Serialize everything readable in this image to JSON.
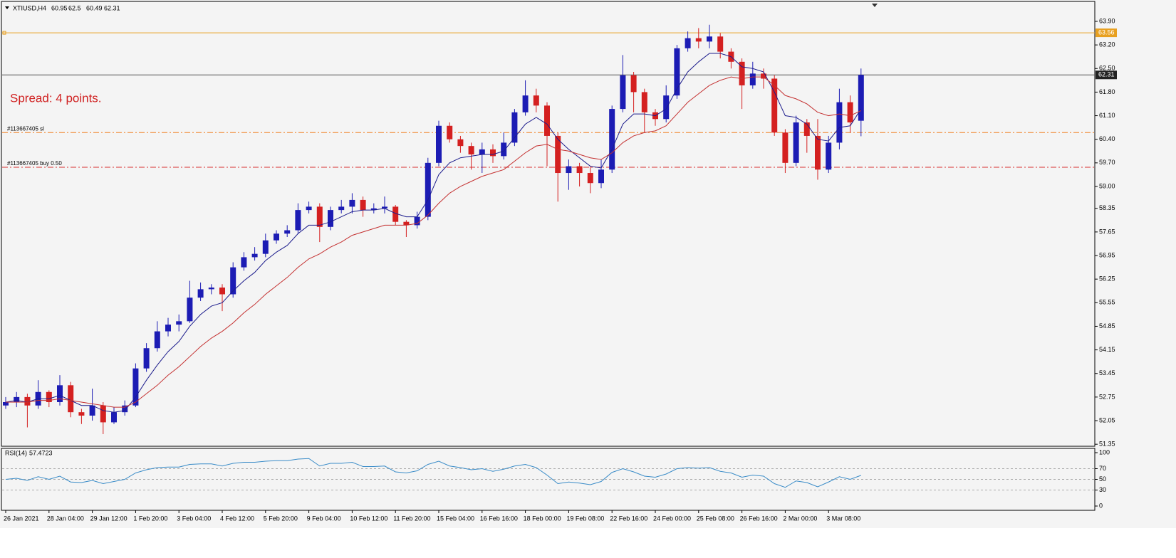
{
  "header": {
    "symbol": "XTIUSD,H4"
  },
  "annotations": {
    "spread": "Spread: 4 points."
  },
  "chart_data": [
    {
      "type": "candlestick",
      "categories": [
        "26 Jan 2021",
        null,
        null,
        null,
        "28 Jan 04:00",
        null,
        null,
        null,
        "29 Jan 12:00",
        null,
        null,
        null,
        "1 Feb 20:00",
        null,
        null,
        null,
        "3 Feb 04:00",
        null,
        null,
        null,
        "4 Feb 12:00",
        null,
        null,
        null,
        "5 Feb 20:00",
        null,
        null,
        null,
        "9 Feb 04:00",
        null,
        null,
        null,
        "10 Feb 12:00",
        null,
        null,
        null,
        "11 Feb 20:00",
        null,
        null,
        null,
        "15 Feb 04:00",
        null,
        null,
        null,
        "16 Feb 16:00",
        null,
        null,
        null,
        "18 Feb 00:00",
        null,
        null,
        null,
        "19 Feb 08:00",
        null,
        null,
        null,
        "22 Feb 16:00",
        null,
        null,
        null,
        "24 Feb 00:00",
        null,
        null,
        null,
        "25 Feb 08:00",
        null,
        null,
        null,
        "26 Feb 16:00",
        null,
        null,
        null,
        "2 Mar 00:00",
        null,
        null,
        null,
        "3 Mar 08:00",
        null,
        null,
        null
      ],
      "open": [
        52.5,
        52.6,
        52.75,
        52.5,
        52.9,
        52.6,
        53.1,
        52.3,
        52.2,
        52.5,
        52.0,
        52.3,
        52.5,
        53.6,
        54.2,
        54.7,
        54.9,
        55.0,
        55.7,
        55.95,
        56.0,
        55.8,
        56.6,
        56.9,
        57.0,
        57.4,
        57.6,
        57.7,
        58.3,
        58.4,
        57.8,
        58.3,
        58.4,
        58.6,
        58.3,
        58.35,
        58.4,
        57.95,
        57.85,
        58.1,
        59.7,
        60.8,
        60.4,
        60.2,
        59.95,
        60.1,
        59.9,
        60.3,
        61.2,
        61.7,
        61.4,
        60.5,
        59.4,
        59.6,
        59.4,
        59.1,
        59.5,
        61.3,
        62.3,
        61.8,
        61.2,
        61.0,
        61.7,
        63.1,
        63.4,
        63.3,
        63.45,
        63.0,
        62.7,
        62.0,
        62.35,
        62.2,
        60.6,
        59.7,
        60.9,
        60.5,
        59.5,
        60.3,
        61.5,
        60.95
      ],
      "high": [
        52.75,
        52.9,
        52.85,
        53.25,
        52.95,
        53.4,
        53.2,
        52.4,
        53.0,
        52.6,
        52.45,
        52.65,
        53.75,
        54.35,
        55.0,
        55.1,
        55.2,
        56.2,
        56.15,
        56.1,
        56.1,
        56.75,
        57.05,
        57.2,
        57.6,
        57.7,
        57.85,
        58.5,
        58.55,
        58.5,
        58.4,
        58.6,
        58.8,
        58.7,
        58.5,
        58.7,
        58.45,
        58.0,
        58.25,
        59.85,
        60.95,
        60.9,
        60.5,
        60.3,
        60.3,
        60.25,
        60.6,
        61.3,
        62.15,
        61.9,
        61.5,
        60.6,
        59.8,
        59.7,
        59.6,
        59.8,
        61.4,
        62.9,
        62.4,
        61.9,
        61.3,
        62.0,
        63.2,
        63.6,
        63.7,
        63.8,
        63.55,
        63.1,
        62.8,
        62.7,
        62.5,
        62.3,
        60.7,
        61.1,
        61.0,
        61.0,
        60.5,
        61.9,
        61.7,
        62.5
      ],
      "low": [
        52.4,
        52.45,
        51.85,
        52.4,
        52.45,
        52.5,
        52.15,
        51.95,
        52.05,
        51.65,
        51.95,
        52.2,
        52.45,
        53.5,
        54.1,
        54.55,
        54.7,
        54.95,
        55.6,
        55.8,
        55.3,
        55.7,
        56.5,
        56.8,
        56.9,
        57.3,
        57.5,
        57.6,
        58.2,
        57.35,
        57.7,
        58.2,
        58.2,
        58.1,
        58.2,
        58.2,
        57.85,
        57.5,
        57.75,
        58.0,
        59.6,
        60.3,
        60.0,
        59.5,
        59.4,
        59.7,
        59.8,
        60.2,
        61.1,
        61.2,
        59.6,
        58.55,
        58.9,
        59.0,
        58.8,
        58.95,
        59.4,
        61.2,
        61.2,
        60.6,
        60.8,
        60.9,
        61.6,
        63.0,
        63.1,
        63.1,
        62.8,
        62.5,
        61.3,
        61.9,
        61.9,
        60.5,
        59.4,
        59.6,
        60.0,
        59.2,
        59.4,
        60.1,
        60.6,
        60.49
      ],
      "close": [
        52.6,
        52.75,
        52.5,
        52.9,
        52.6,
        53.1,
        52.3,
        52.2,
        52.5,
        52.0,
        52.3,
        52.5,
        53.6,
        54.2,
        54.7,
        54.9,
        55.0,
        55.7,
        55.95,
        56.0,
        55.8,
        56.6,
        56.9,
        57.0,
        57.4,
        57.6,
        57.7,
        58.3,
        58.4,
        57.8,
        58.3,
        58.4,
        58.6,
        58.3,
        58.35,
        58.4,
        57.95,
        57.85,
        58.1,
        59.7,
        60.8,
        60.4,
        60.2,
        59.95,
        60.1,
        59.9,
        60.3,
        61.2,
        61.7,
        61.4,
        60.5,
        59.4,
        59.6,
        59.4,
        59.1,
        59.5,
        61.3,
        62.3,
        61.8,
        61.2,
        61.0,
        61.7,
        63.1,
        63.4,
        63.3,
        63.45,
        63.0,
        62.7,
        62.0,
        62.35,
        62.2,
        60.6,
        59.7,
        60.9,
        60.5,
        59.5,
        60.3,
        61.5,
        60.9,
        62.31
      ],
      "up_color": "#1c1cb4",
      "down_color": "#d42020",
      "ma": [
        {
          "color": "#1c1c8c",
          "values": [
            52.6,
            52.65,
            52.6,
            52.7,
            52.7,
            52.8,
            52.65,
            52.5,
            52.5,
            52.35,
            52.3,
            52.35,
            52.75,
            53.25,
            53.7,
            54.1,
            54.4,
            54.85,
            55.2,
            55.45,
            55.55,
            55.9,
            56.2,
            56.45,
            56.8,
            57.05,
            57.25,
            57.6,
            57.85,
            57.85,
            57.95,
            58.1,
            58.25,
            58.3,
            58.3,
            58.35,
            58.2,
            58.1,
            58.1,
            58.6,
            59.35,
            59.7,
            59.85,
            59.9,
            59.95,
            59.95,
            60.05,
            60.45,
            60.85,
            61.05,
            60.85,
            60.4,
            60.1,
            59.85,
            59.6,
            59.55,
            60.1,
            60.85,
            61.15,
            61.15,
            61.1,
            61.3,
            61.9,
            62.4,
            62.7,
            62.95,
            62.95,
            62.85,
            62.55,
            62.5,
            62.4,
            61.8,
            61.1,
            61.05,
            60.85,
            60.4,
            60.35,
            60.75,
            60.8,
            61.3
          ]
        },
        {
          "color": "#c43030",
          "values": [
            52.6,
            52.6,
            52.6,
            52.65,
            52.65,
            52.7,
            52.65,
            52.6,
            52.55,
            52.5,
            52.45,
            52.45,
            52.6,
            52.85,
            53.1,
            53.4,
            53.65,
            53.95,
            54.25,
            54.5,
            54.7,
            54.95,
            55.25,
            55.5,
            55.8,
            56.05,
            56.3,
            56.6,
            56.85,
            57.0,
            57.2,
            57.35,
            57.55,
            57.65,
            57.75,
            57.85,
            57.85,
            57.85,
            57.9,
            58.15,
            58.5,
            58.8,
            59.0,
            59.15,
            59.3,
            59.4,
            59.5,
            59.75,
            60.0,
            60.2,
            60.25,
            60.1,
            60.05,
            59.95,
            59.85,
            59.8,
            60.0,
            60.3,
            60.5,
            60.6,
            60.65,
            60.8,
            61.15,
            61.5,
            61.75,
            62.0,
            62.15,
            62.25,
            62.2,
            62.25,
            62.25,
            62.0,
            61.7,
            61.6,
            61.45,
            61.2,
            61.1,
            61.15,
            61.1,
            61.25
          ]
        }
      ],
      "ylim": [
        51.29,
        64.47
      ],
      "yticks": [
        {
          "value": 63.9,
          "label": "63.90"
        },
        {
          "value": 63.2,
          "label": "63.20"
        },
        {
          "value": 62.5,
          "label": "62.50"
        },
        {
          "value": 61.8,
          "label": "61.80"
        },
        {
          "value": 61.1,
          "label": "61.10"
        },
        {
          "value": 60.4,
          "label": "60.40"
        },
        {
          "value": 59.7,
          "label": "59.70"
        },
        {
          "value": 59.0,
          "label": "59.00"
        },
        58.35,
        57.65,
        56.95,
        56.25,
        55.55,
        54.85,
        54.15,
        53.45,
        52.75,
        52.05,
        51.35
      ],
      "levels": [
        {
          "value": 63.56,
          "color": "#e8a020"
        },
        {
          "value": 60.6,
          "color": "#f08020",
          "label": "#113667405 sl"
        },
        {
          "value": 59.57,
          "color": "#d83030",
          "label": "#113667405 buy 0.50"
        }
      ]
    },
    {
      "type": "line",
      "title": "RSI(14)",
      "color": "#3a8cc8",
      "values": [
        50,
        52,
        48,
        55,
        50,
        56,
        45,
        44,
        48,
        42,
        46,
        50,
        62,
        68,
        72,
        73,
        73,
        78,
        79,
        79,
        75,
        80,
        82,
        82,
        84,
        85,
        85,
        88,
        89,
        75,
        80,
        80,
        82,
        74,
        74,
        75,
        64,
        62,
        66,
        78,
        84,
        75,
        72,
        68,
        70,
        65,
        69,
        75,
        78,
        72,
        58,
        42,
        45,
        43,
        40,
        46,
        63,
        70,
        64,
        56,
        54,
        60,
        70,
        72,
        71,
        72,
        65,
        62,
        54,
        58,
        56,
        42,
        35,
        47,
        44,
        36,
        45,
        55,
        50,
        57.4723
      ],
      "ylim": [
        -8,
        108
      ],
      "yticks": [
        100,
        70,
        50,
        30,
        0
      ],
      "levels": [
        70,
        50,
        30
      ]
    }
  ]
}
